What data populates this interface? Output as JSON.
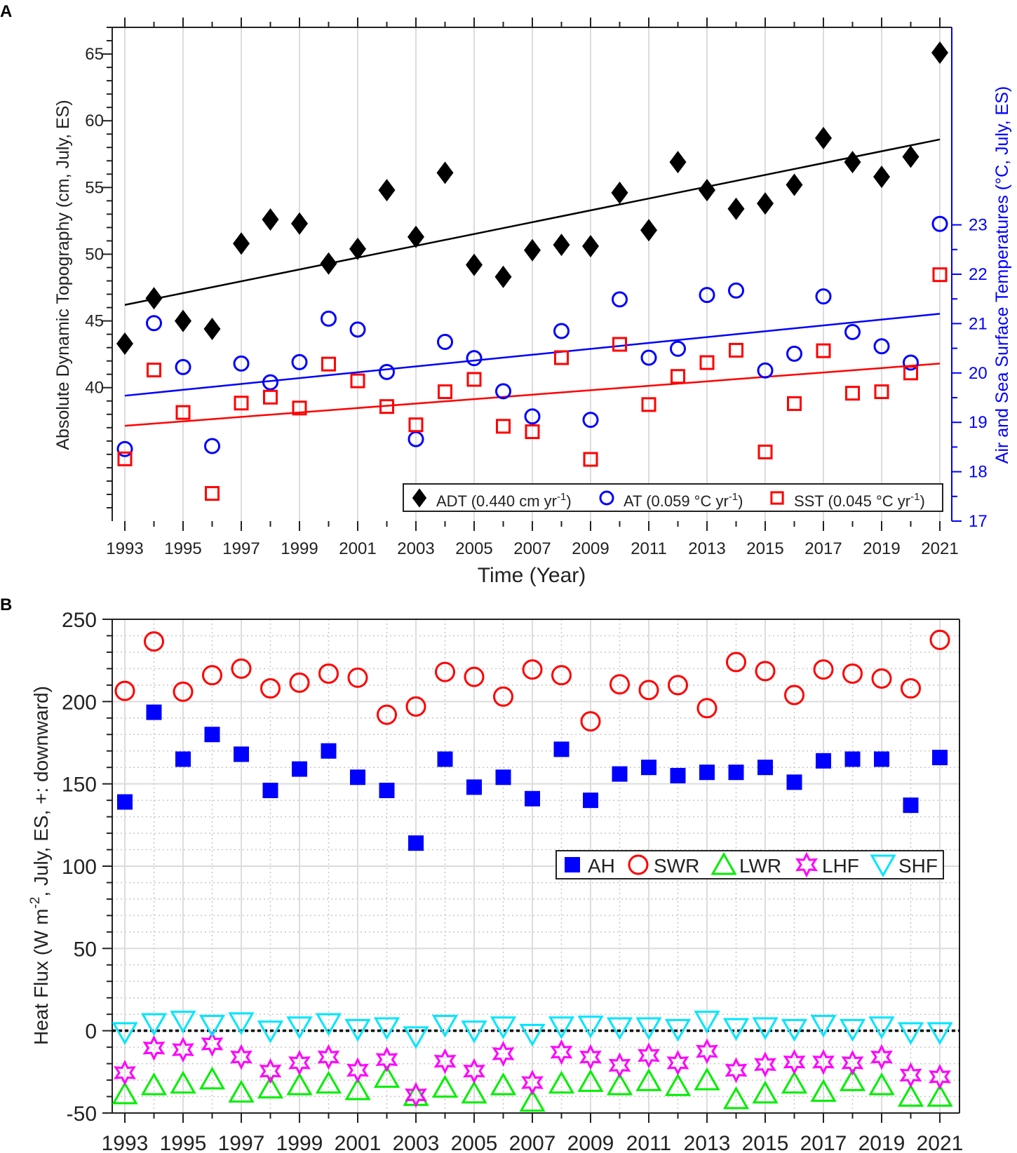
{
  "chart_data": [
    {
      "panel_label": "A",
      "type": "scatter",
      "xlabel": "Time (Year)",
      "ylabel": "Absolute Dynamic Topography (cm, July, ES)",
      "ylabel_right": "Air and Sea Surface Temperatures (°C, July, ES)",
      "xlim": [
        1992.6,
        2021.4
      ],
      "ylim": [
        30,
        67
      ],
      "ylim_right": [
        17,
        27
      ],
      "yticks": [
        40,
        45,
        50,
        55,
        60,
        65
      ],
      "yticks_right": [
        17,
        18,
        19,
        20,
        21,
        22,
        23
      ],
      "xticks": [
        1993,
        1995,
        1997,
        1999,
        2001,
        2003,
        2005,
        2007,
        2009,
        2011,
        2013,
        2015,
        2017,
        2019,
        2021
      ],
      "x": [
        1993,
        1994,
        1995,
        1996,
        1997,
        1998,
        1999,
        2000,
        2001,
        2002,
        2003,
        2004,
        2005,
        2006,
        2007,
        2008,
        2009,
        2010,
        2011,
        2012,
        2013,
        2014,
        2015,
        2016,
        2017,
        2018,
        2019,
        2020,
        2021
      ],
      "series": [
        {
          "name": "ADT",
          "axis": "left",
          "marker": "diamond",
          "color": "#000000",
          "values": [
            43.3,
            46.7,
            45.0,
            44.4,
            50.8,
            52.6,
            52.3,
            49.3,
            50.4,
            54.8,
            51.3,
            56.1,
            49.2,
            48.3,
            50.3,
            50.7,
            50.6,
            54.6,
            51.8,
            56.9,
            54.8,
            53.4,
            53.8,
            55.2,
            58.7,
            56.9,
            55.8,
            57.3,
            65.1
          ],
          "trend": [
            46.2,
            58.6
          ]
        },
        {
          "name": "AT",
          "axis": "right",
          "marker": "circle",
          "color": "#0000ff",
          "values": [
            18.46,
            21.01,
            20.12,
            18.52,
            20.19,
            19.81,
            20.22,
            21.1,
            20.88,
            20.02,
            18.66,
            20.63,
            20.3,
            19.63,
            19.12,
            20.85,
            19.05,
            21.49,
            20.31,
            20.49,
            21.58,
            21.67,
            20.05,
            20.39,
            21.55,
            20.83,
            20.54,
            20.21,
            23.02
          ],
          "trend": [
            19.54,
            21.2
          ]
        },
        {
          "name": "SST",
          "axis": "right",
          "marker": "square",
          "color": "#ff0000",
          "values": [
            18.26,
            20.06,
            19.2,
            17.56,
            19.39,
            19.51,
            19.29,
            20.18,
            19.84,
            19.32,
            18.95,
            19.62,
            19.87,
            18.92,
            18.81,
            20.31,
            18.25,
            20.58,
            19.36,
            19.93,
            20.21,
            20.46,
            18.4,
            19.38,
            20.45,
            19.59,
            19.62,
            20.0,
            21.99
          ],
          "trend": [
            18.93,
            20.19
          ]
        }
      ],
      "legend": {
        "placement": "bottom-right",
        "entries": [
          {
            "pre": "ADT (0.440 cm yr",
            "sup": "-1",
            "post": ")"
          },
          {
            "pre": "AT (0.059 °C yr",
            "sup": "-1",
            "post": ")"
          },
          {
            "pre": "SST (0.045 °C yr",
            "sup": "-1",
            "post": ")"
          }
        ]
      }
    },
    {
      "panel_label": "B",
      "type": "scatter",
      "xlabel": "",
      "ylabel": {
        "pre": "Heat Flux (W m",
        "sup": "-2",
        "post": ", July, ES, +: downward)"
      },
      "xlim": [
        1992.6,
        2021.4
      ],
      "ylim": [
        -50,
        250
      ],
      "yticks": [
        -50,
        0,
        50,
        100,
        150,
        200,
        250
      ],
      "xticks": [
        1993,
        1995,
        1997,
        1999,
        2001,
        2003,
        2005,
        2007,
        2009,
        2011,
        2013,
        2015,
        2017,
        2019,
        2021
      ],
      "x": [
        1993,
        1994,
        1995,
        1996,
        1997,
        1998,
        1999,
        2000,
        2001,
        2002,
        2003,
        2004,
        2005,
        2006,
        2007,
        2008,
        2009,
        2010,
        2011,
        2012,
        2013,
        2014,
        2015,
        2016,
        2017,
        2018,
        2019,
        2020,
        2021
      ],
      "series": [
        {
          "name": "AH",
          "marker": "filled-square",
          "color": "#0000ff",
          "values": [
            139,
            193.5,
            165,
            180,
            168,
            146,
            159,
            170,
            154,
            146,
            114,
            165,
            148,
            154,
            141,
            171,
            140,
            156,
            160,
            155,
            157,
            157,
            160,
            151,
            164,
            165,
            165,
            137,
            166
          ]
        },
        {
          "name": "SWR",
          "marker": "circle",
          "color": "#ff0000",
          "values": [
            206.5,
            236.5,
            206,
            216,
            220,
            208,
            211.5,
            217,
            214.5,
            192,
            197,
            218,
            215,
            203,
            219.5,
            216,
            188,
            210.5,
            207,
            210,
            196,
            224,
            218.5,
            204,
            219.5,
            217,
            214,
            208,
            237.5
          ]
        },
        {
          "name": "LWR",
          "marker": "triangle-up",
          "color": "#00ee00",
          "values": [
            -38.5,
            -33,
            -32,
            -29.5,
            -37.5,
            -35,
            -33,
            -32,
            -36,
            -28.5,
            -39.5,
            -34.5,
            -38,
            -33,
            -43,
            -32,
            -31,
            -33,
            -30.5,
            -33.5,
            -30,
            -41.5,
            -38,
            -32,
            -37,
            -30.5,
            -33,
            -40,
            -40
          ]
        },
        {
          "name": "LHF",
          "marker": "hexagram",
          "color": "#ff00ff",
          "values": [
            -25.5,
            -10.5,
            -11.5,
            -8,
            -16,
            -24.5,
            -19.5,
            -16,
            -24,
            -17.5,
            -39,
            -18.5,
            -24.5,
            -14,
            -31.5,
            -13,
            -16,
            -21,
            -15,
            -19.5,
            -12.5,
            -24,
            -20.5,
            -19,
            -19,
            -19.5,
            -16,
            -27,
            -28
          ]
        },
        {
          "name": "SHF",
          "marker": "triangle-down",
          "color": "#00e5ff",
          "values": [
            -1,
            4.5,
            6,
            3.5,
            5,
            0,
            2.5,
            4.5,
            1,
            2,
            -3.5,
            3.5,
            0,
            2.5,
            -2,
            2.5,
            3,
            2,
            2,
            1,
            6,
            1.5,
            2,
            1,
            3.5,
            1,
            2.5,
            -1,
            -1
          ]
        }
      ],
      "legend": {
        "placement": "center-right",
        "entries": [
          "AH",
          "SWR",
          "LWR",
          "LHF",
          "SHF"
        ]
      }
    }
  ]
}
